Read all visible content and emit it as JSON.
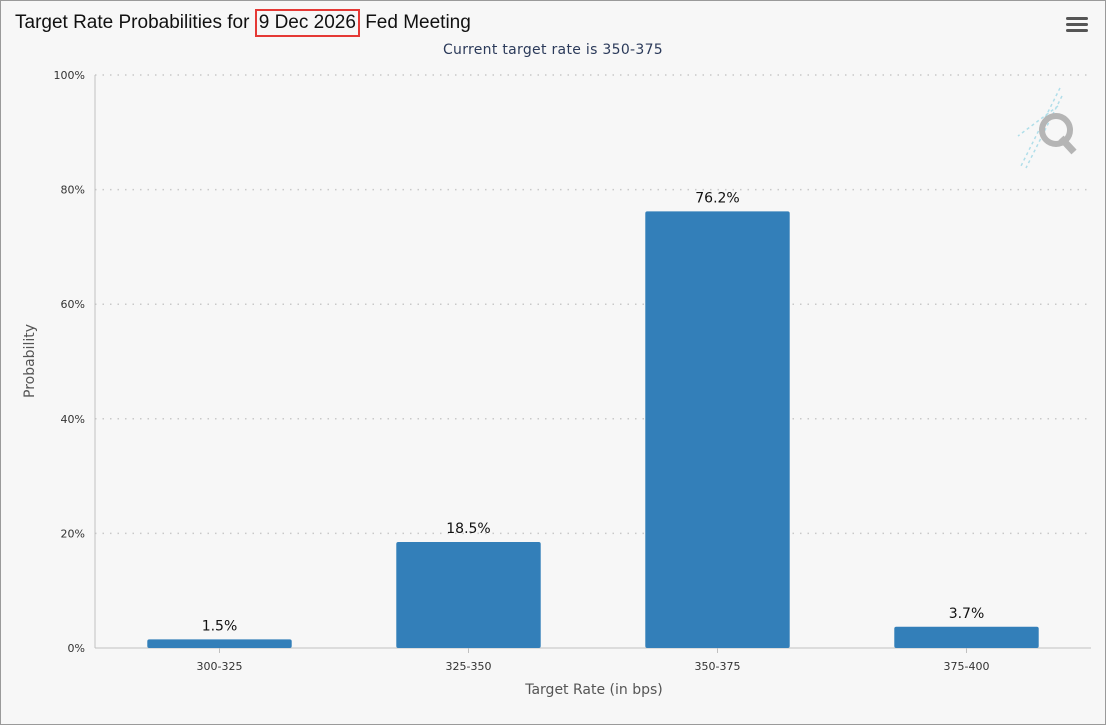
{
  "header": {
    "title_prefix": "Target Rate Probabilities for ",
    "title_highlight": "9 Dec 2026",
    "title_suffix": " Fed Meeting",
    "subtitle": "Current target rate is 350-375",
    "highlight_color": "#e53935",
    "menu_icon": "hamburger-menu-icon",
    "watermark_icon": "q-logo-icon"
  },
  "chart_data": {
    "type": "bar",
    "categories": [
      "300-325",
      "325-350",
      "350-375",
      "375-400"
    ],
    "values": [
      1.5,
      18.5,
      76.2,
      3.7
    ],
    "value_labels": [
      "1.5%",
      "18.5%",
      "76.2%",
      "3.7%"
    ],
    "xlabel": "Target Rate (in bps)",
    "ylabel": "Probability",
    "ylim": [
      0,
      100
    ],
    "yticks": [
      0,
      20,
      40,
      60,
      80,
      100
    ],
    "ytick_labels": [
      "0%",
      "20%",
      "40%",
      "60%",
      "80%",
      "100%"
    ],
    "grid": true,
    "bar_color": "#337fb9"
  }
}
